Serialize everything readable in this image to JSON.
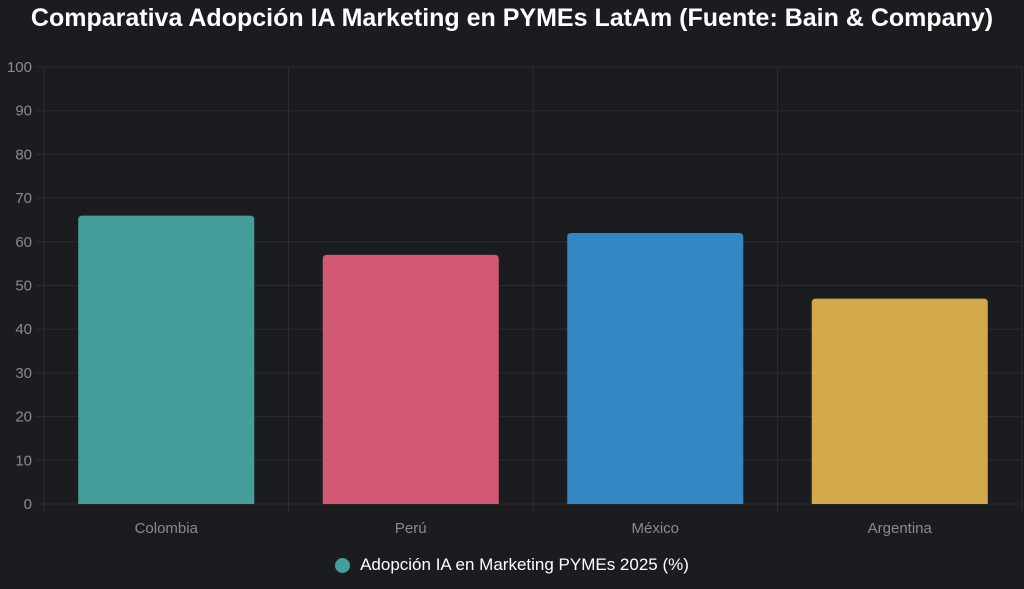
{
  "chart_data": {
    "type": "bar",
    "title": "Comparativa Adopción IA Marketing en PYMEs LatAm (Fuente: Bain & Company)",
    "categories": [
      "Colombia",
      "Perú",
      "México",
      "Argentina"
    ],
    "series": [
      {
        "name": "Adopción IA en Marketing PYMEs 2025 (%)",
        "values": [
          66,
          57,
          62,
          47
        ]
      }
    ],
    "bar_colors": [
      "#459e9c",
      "#d35873",
      "#3388c4",
      "#d2aa4c"
    ],
    "ylim": [
      0,
      100
    ],
    "yticks": [
      0,
      10,
      20,
      30,
      40,
      50,
      60,
      70,
      80,
      90,
      100
    ],
    "xlabel": "",
    "ylabel": "",
    "grid": true,
    "legend_position": "bottom"
  },
  "colors": {
    "background": "#1b1c20",
    "grid": "#2c2d31",
    "tick_text": "#8a8b8f",
    "legend_marker": "#459e9c"
  }
}
